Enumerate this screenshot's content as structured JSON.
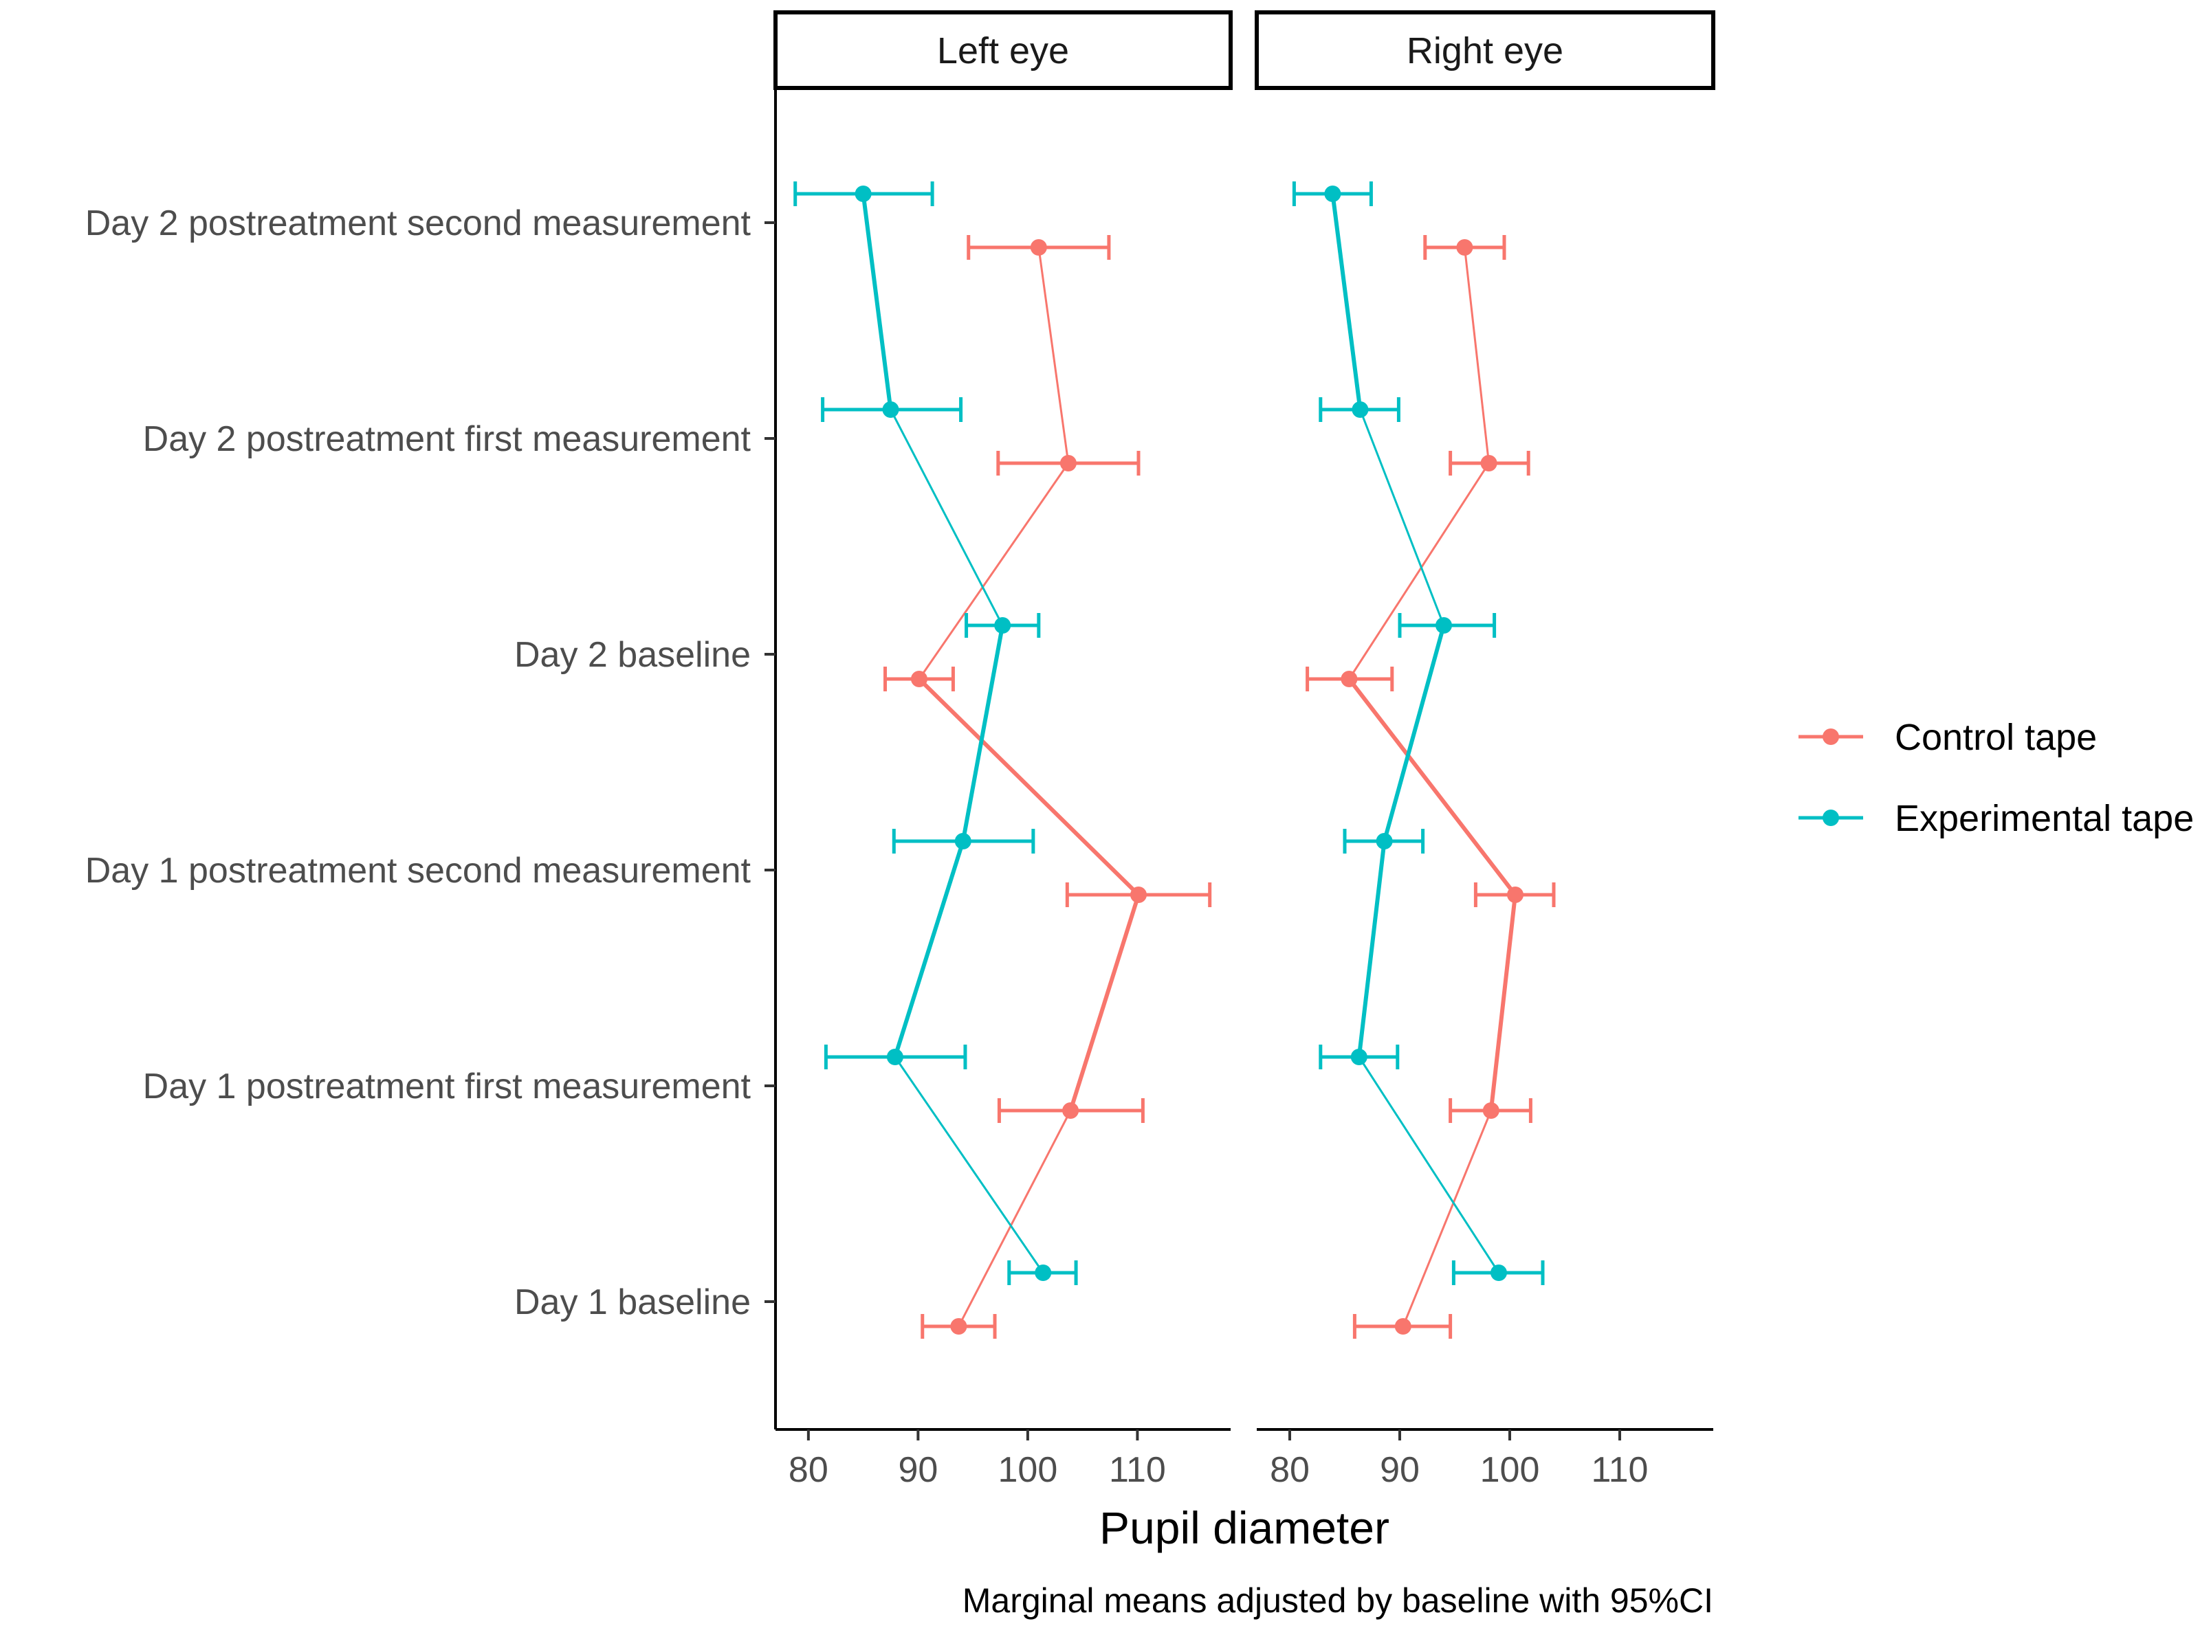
{
  "chart_data": {
    "type": "line",
    "orientation": "horizontal",
    "facets": [
      "Left eye",
      "Right eye"
    ],
    "categories": [
      "Day 1 baseline",
      "Day 1 postreatment first measurement",
      "Day 1 postreatment second measurement",
      "Day 2 baseline",
      "Day 2 postreatment first measurement",
      "Day 2 postreatment second measurement"
    ],
    "xlabel": "Pupil diameter",
    "ylabel": "",
    "caption": "Marginal means adjusted by baseline with 95%CI",
    "xticks": [
      80,
      90,
      100,
      110
    ],
    "xlim": [
      77,
      118.5
    ],
    "grid": false,
    "legend_position": "right",
    "series": [
      {
        "name": "Control tape",
        "color": "#F8766D",
        "panels": {
          "Left eye": {
            "mean": [
              93.7,
              103.9,
              110.1,
              90.1,
              103.7,
              101.0
            ],
            "lower": [
              90.4,
              97.4,
              103.6,
              87.0,
              97.3,
              94.6
            ],
            "upper": [
              97.0,
              110.5,
              116.6,
              93.2,
              110.1,
              107.4
            ]
          },
          "Right eye": {
            "mean": [
              90.3,
              98.3,
              100.5,
              85.4,
              98.1,
              95.9
            ],
            "lower": [
              85.9,
              94.6,
              96.9,
              81.6,
              94.6,
              92.3
            ],
            "upper": [
              94.6,
              101.9,
              104.0,
              89.3,
              101.7,
              99.5
            ]
          }
        }
      },
      {
        "name": "Experimental tape",
        "color": "#00BFC4",
        "panels": {
          "Left eye": {
            "mean": [
              101.4,
              87.9,
              94.1,
              97.7,
              87.5,
              85.0
            ],
            "lower": [
              98.3,
              81.6,
              87.8,
              94.4,
              81.3,
              78.8
            ],
            "upper": [
              104.4,
              94.3,
              100.5,
              101.0,
              93.9,
              91.3
            ]
          },
          "Right eye": {
            "mean": [
              99.0,
              86.3,
              88.6,
              94.0,
              86.4,
              83.9
            ],
            "lower": [
              94.9,
              82.8,
              85.0,
              90.0,
              82.8,
              80.4
            ],
            "upper": [
              103.0,
              89.8,
              92.1,
              98.6,
              89.9,
              87.4
            ]
          }
        }
      }
    ]
  }
}
